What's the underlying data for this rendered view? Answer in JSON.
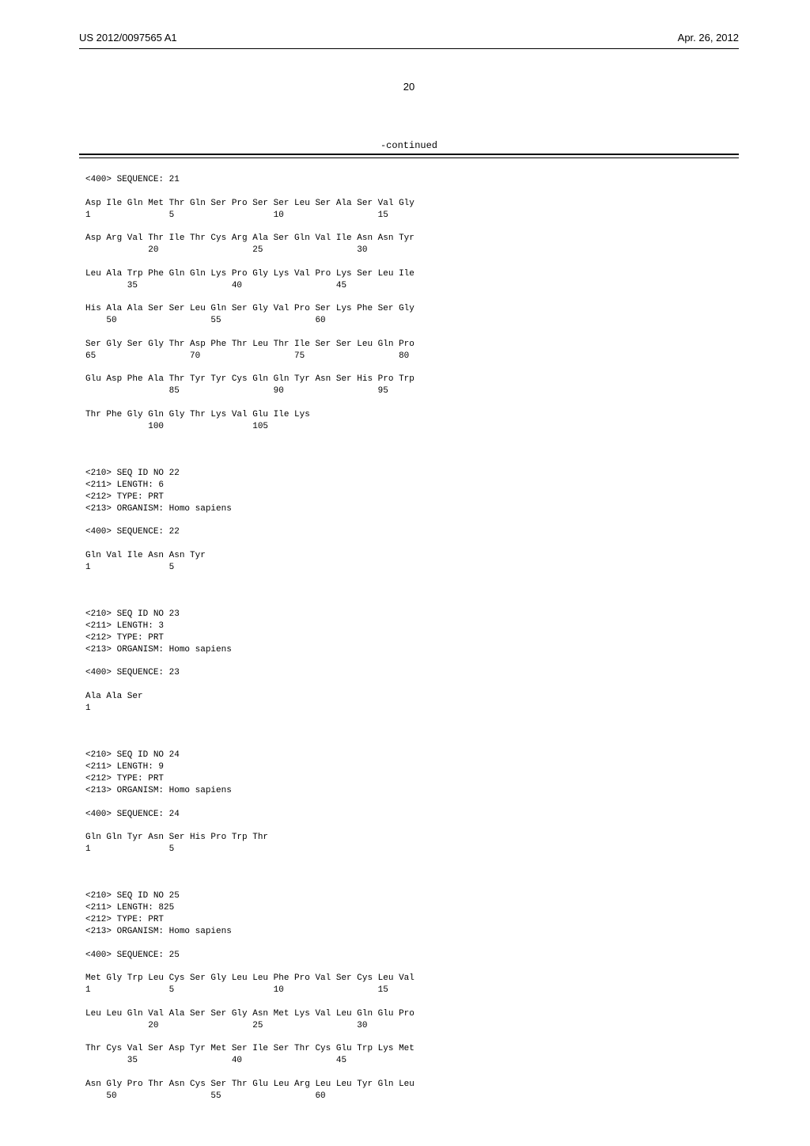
{
  "header": {
    "pub_number": "US 2012/0097565 A1",
    "pub_date": "Apr. 26, 2012"
  },
  "page_number": "20",
  "continued_label": "-continued",
  "entries": [
    {
      "pre": "<400> SEQUENCE: 21",
      "sequence": [
        {
          "aa": "Asp Ile Gln Met Thr Gln Ser Pro Ser Ser Leu Ser Ala Ser Val Gly",
          "nums": "1               5                   10                  15"
        },
        {
          "aa": "Asp Arg Val Thr Ile Thr Cys Arg Ala Ser Gln Val Ile Asn Asn Tyr",
          "nums": "            20                  25                  30"
        },
        {
          "aa": "Leu Ala Trp Phe Gln Gln Lys Pro Gly Lys Val Pro Lys Ser Leu Ile",
          "nums": "        35                  40                  45"
        },
        {
          "aa": "His Ala Ala Ser Ser Leu Gln Ser Gly Val Pro Ser Lys Phe Ser Gly",
          "nums": "    50                  55                  60"
        },
        {
          "aa": "Ser Gly Ser Gly Thr Asp Phe Thr Leu Thr Ile Ser Ser Leu Gln Pro",
          "nums": "65                  70                  75                  80"
        },
        {
          "aa": "Glu Asp Phe Ala Thr Tyr Tyr Cys Gln Gln Tyr Asn Ser His Pro Trp",
          "nums": "                85                  90                  95"
        },
        {
          "aa": "Thr Phe Gly Gln Gly Thr Lys Val Glu Ile Lys",
          "nums": "            100                 105"
        }
      ]
    },
    {
      "pre": "<210> SEQ ID NO 22\n<211> LENGTH: 6\n<212> TYPE: PRT\n<213> ORGANISM: Homo sapiens\n\n<400> SEQUENCE: 22",
      "sequence": [
        {
          "aa": "Gln Val Ile Asn Asn Tyr",
          "nums": "1               5"
        }
      ]
    },
    {
      "pre": "<210> SEQ ID NO 23\n<211> LENGTH: 3\n<212> TYPE: PRT\n<213> ORGANISM: Homo sapiens\n\n<400> SEQUENCE: 23",
      "sequence": [
        {
          "aa": "Ala Ala Ser",
          "nums": "1"
        }
      ]
    },
    {
      "pre": "<210> SEQ ID NO 24\n<211> LENGTH: 9\n<212> TYPE: PRT\n<213> ORGANISM: Homo sapiens\n\n<400> SEQUENCE: 24",
      "sequence": [
        {
          "aa": "Gln Gln Tyr Asn Ser His Pro Trp Thr",
          "nums": "1               5"
        }
      ]
    },
    {
      "pre": "<210> SEQ ID NO 25\n<211> LENGTH: 825\n<212> TYPE: PRT\n<213> ORGANISM: Homo sapiens\n\n<400> SEQUENCE: 25",
      "sequence": [
        {
          "aa": "Met Gly Trp Leu Cys Ser Gly Leu Leu Phe Pro Val Ser Cys Leu Val",
          "nums": "1               5                   10                  15"
        },
        {
          "aa": "Leu Leu Gln Val Ala Ser Ser Gly Asn Met Lys Val Leu Gln Glu Pro",
          "nums": "            20                  25                  30"
        },
        {
          "aa": "Thr Cys Val Ser Asp Tyr Met Ser Ile Ser Thr Cys Glu Trp Lys Met",
          "nums": "        35                  40                  45"
        },
        {
          "aa": "Asn Gly Pro Thr Asn Cys Ser Thr Glu Leu Arg Leu Leu Tyr Gln Leu",
          "nums": "    50                  55                  60"
        }
      ]
    }
  ]
}
